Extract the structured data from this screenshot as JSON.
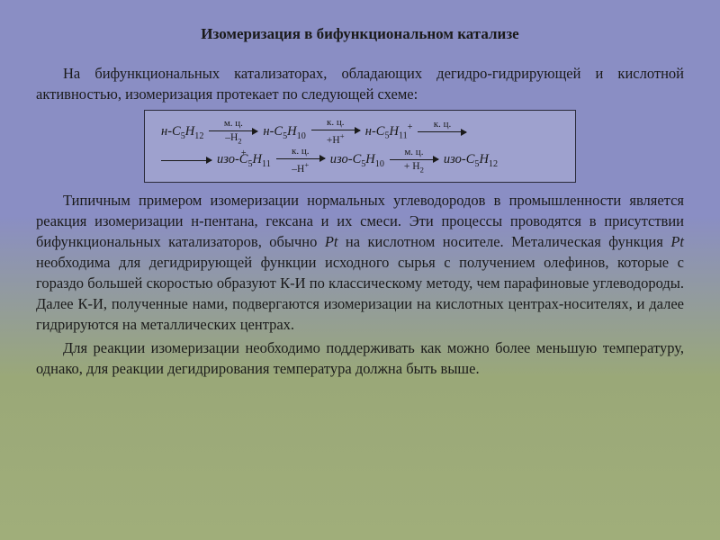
{
  "title": "Изомеризация в бифункциональном катализе",
  "para1": "На бифункциональных катализаторах, обладающих дегидро-гидрирующей и кислотной активностью, изомеризация протекает по следующей схеме:",
  "scheme": {
    "border_color": "#2a2a3a",
    "fontsize": 14.5,
    "row1": {
      "mol1": {
        "prefix": "н-",
        "formula": "C5H12"
      },
      "arr1": {
        "top": "м. ц.",
        "bot": "–H2"
      },
      "mol2": {
        "prefix": "н-",
        "formula": "C5H10"
      },
      "arr2": {
        "top": "к. ц.",
        "bot": "+H+"
      },
      "mol3": {
        "prefix": "н-",
        "formula": "C5H11",
        "charge": "+"
      },
      "arr3": {
        "top": "к. ц.",
        "bot": ""
      }
    },
    "row2": {
      "mol1": {
        "prefix": "изо-",
        "formula": "C5H11",
        "charge": "+"
      },
      "arr1": {
        "top": "к. ц.",
        "bot": "–H+"
      },
      "mol2": {
        "prefix": "изо-",
        "formula": "C5H10"
      },
      "arr2": {
        "top": "м. ц.",
        "bot": "+ H2"
      },
      "mol3": {
        "prefix": "изо-",
        "formula": "C5H12"
      }
    }
  },
  "para2_a": "Типичным примером изомеризации нормальных углеводородов в промышленности является реакция изомеризации н-пентана, гексана и их смеси. Эти процессы проводятся в присутствии бифункциональных катализаторов, обычно ",
  "para2_pt1": "Pt",
  "para2_b": " на кислотном носителе. Металическая функция ",
  "para2_pt2": "Pt",
  "para2_c": " необходима для дегидрирующей функции исходного сырья с получением олефинов, которые с гораздо большей скоростью образуют К-И по классическому методу, чем парафиновые углеводороды. Далее К-И, полученные нами, подвергаются изомеризации на кислотных центрах-носителях, и далее гидрируются на металлических центрах.",
  "para3": "Для реакции изомеризации необходимо поддерживать как можно более меньшую температуру, однако, для реакции дегидрирования температура должна быть выше.",
  "colors": {
    "bg_top": "#8a8ec4",
    "bg_bottom": "#a0ae7a",
    "text": "#1a1a1a"
  },
  "typography": {
    "title_fontsize": 17,
    "title_weight": "bold",
    "body_fontsize": 16.5,
    "line_height": 1.4,
    "font_family": "Times New Roman"
  }
}
